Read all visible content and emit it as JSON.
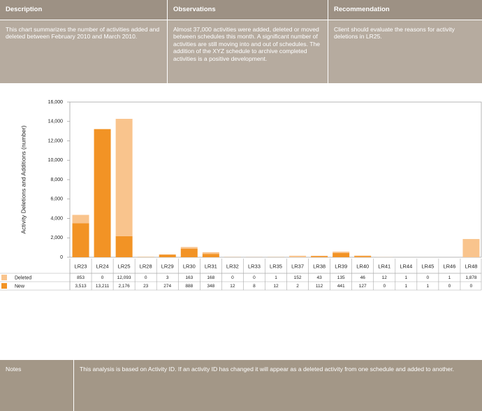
{
  "header": {
    "columns": [
      {
        "title": "Description",
        "text": "This chart summarizes the number of activities added and deleted between February 2010 and March 2010."
      },
      {
        "title": "Observations",
        "text": "Almost 37,000 activities were added, deleted or moved between schedules this month. A significant number of activities are still moving into and out of schedules. The addition of the XYZ schedule to archive completed activities is a positive development."
      },
      {
        "title": "Recommendation",
        "text": "Client should evaluate the reasons for activity deletions in LR25."
      }
    ]
  },
  "chart_data": {
    "type": "stacked_bar",
    "y_label": "Activity Deletions and Additions (number)",
    "categories": [
      "LR23",
      "LR24",
      "LR25",
      "LR28",
      "LR29",
      "LR30",
      "LR31",
      "LR32",
      "LR33",
      "LR35",
      "LR37",
      "LR38",
      "LR39",
      "LR40",
      "LR41",
      "LR44",
      "LR45",
      "LR46",
      "LR48"
    ],
    "series": [
      {
        "name": "Deleted",
        "color": "#f9c48d",
        "values": [
          853,
          0,
          12093,
          0,
          3,
          163,
          168,
          0,
          0,
          1,
          152,
          43,
          135,
          46,
          12,
          1,
          0,
          1,
          1878
        ],
        "value_labels": [
          "853",
          "0",
          "12,093",
          "0",
          "3",
          "163",
          "168",
          "0",
          "0",
          "1",
          "152",
          "43",
          "135",
          "46",
          "12",
          "1",
          "0",
          "1",
          "1,878"
        ]
      },
      {
        "name": "New",
        "color": "#f29325",
        "values": [
          3513,
          13211,
          2176,
          23,
          274,
          888,
          348,
          12,
          8,
          12,
          2,
          112,
          441,
          127,
          0,
          1,
          1,
          0,
          0
        ],
        "value_labels": [
          "3,513",
          "13,211",
          "2,176",
          "23",
          "274",
          "888",
          "348",
          "12",
          "8",
          "12",
          "2",
          "112",
          "441",
          "127",
          "0",
          "1",
          "1",
          "0",
          "0"
        ]
      }
    ],
    "ylim": [
      0,
      16000
    ],
    "yticks": [
      0,
      {
        "value": 2000,
        "label": "2,000"
      },
      {
        "value": 4000,
        "label": "4,000"
      },
      {
        "value": 6000,
        "label": "6,000"
      },
      {
        "value": 8000,
        "label": "8,000"
      },
      {
        "value": 10000,
        "label": "10,000"
      },
      {
        "value": 12000,
        "label": "12,000"
      },
      {
        "value": 14000,
        "label": "14,000"
      },
      {
        "value": 16000,
        "label": "16,000"
      }
    ],
    "grid": false
  },
  "notes": {
    "label": "Notes",
    "text": "This analysis is based on Activity ID. If an activity ID has changed it will appear as a deleted activity from one schedule and added to another."
  }
}
